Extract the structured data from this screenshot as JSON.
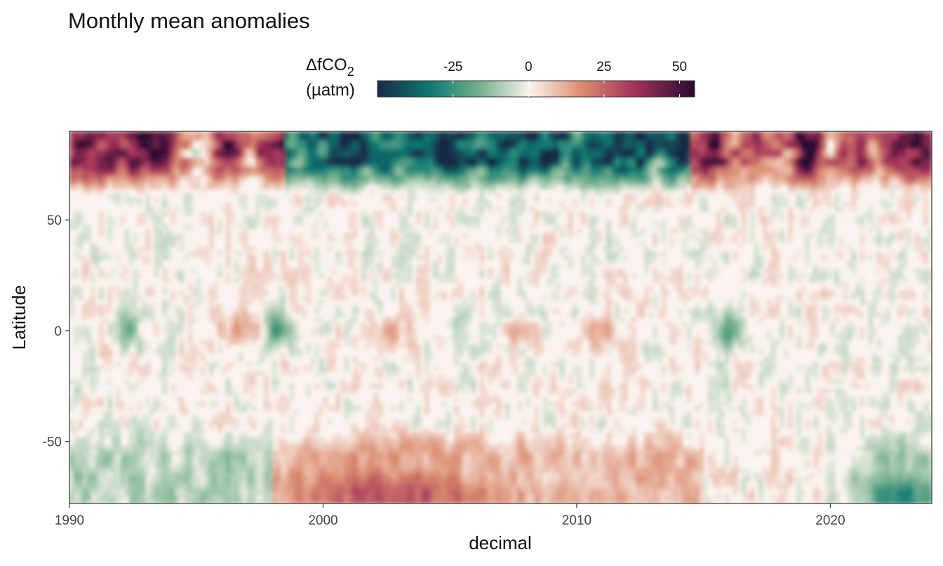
{
  "chart_data": {
    "type": "heatmap",
    "title": "Monthly mean anomalies",
    "xlabel": "decimal",
    "ylabel": "Latitude",
    "xlim": [
      1990,
      2024
    ],
    "ylim": [
      -78,
      90
    ],
    "x_ticks": [
      1990,
      2000,
      2010,
      2020
    ],
    "y_ticks": [
      -50,
      0,
      50
    ],
    "grid": false,
    "legend": {
      "title_line1": "ΔfCO",
      "title_subscript": "2",
      "title_line2": "(µatm)",
      "placement": "top",
      "range": [
        -50,
        55
      ],
      "ticks": [
        -25,
        0,
        25,
        50
      ],
      "palette": [
        "#172b47",
        "#0f7a72",
        "#7ab38f",
        "#faf3ef",
        "#dc8f72",
        "#a3325a",
        "#2a0b31"
      ]
    },
    "features": [
      {
        "lat_band": "north of 75",
        "period": "1990-1998",
        "anomaly": "+40 to +60"
      },
      {
        "lat_band": "north of 75",
        "period": "1999-2014",
        "anomaly": "-25 to -50"
      },
      {
        "lat_band": "north of 75",
        "period": "2015-2024",
        "anomaly": "+25 to +55"
      },
      {
        "lat_band": "equator",
        "period": "1992 and 1998",
        "anomaly": "about -20"
      },
      {
        "lat_band": "equator",
        "period": "2016",
        "anomaly": "about -20"
      },
      {
        "lat_band": "equator",
        "period": "1996-1997, 2010-2011",
        "anomaly": "+10 to +20"
      },
      {
        "lat_band": "south of -50",
        "period": "2000-2014",
        "anomaly": "+10 to +25"
      },
      {
        "lat_band": "south of -60",
        "period": "2020-2024",
        "anomaly": "-20 to -40"
      }
    ]
  }
}
